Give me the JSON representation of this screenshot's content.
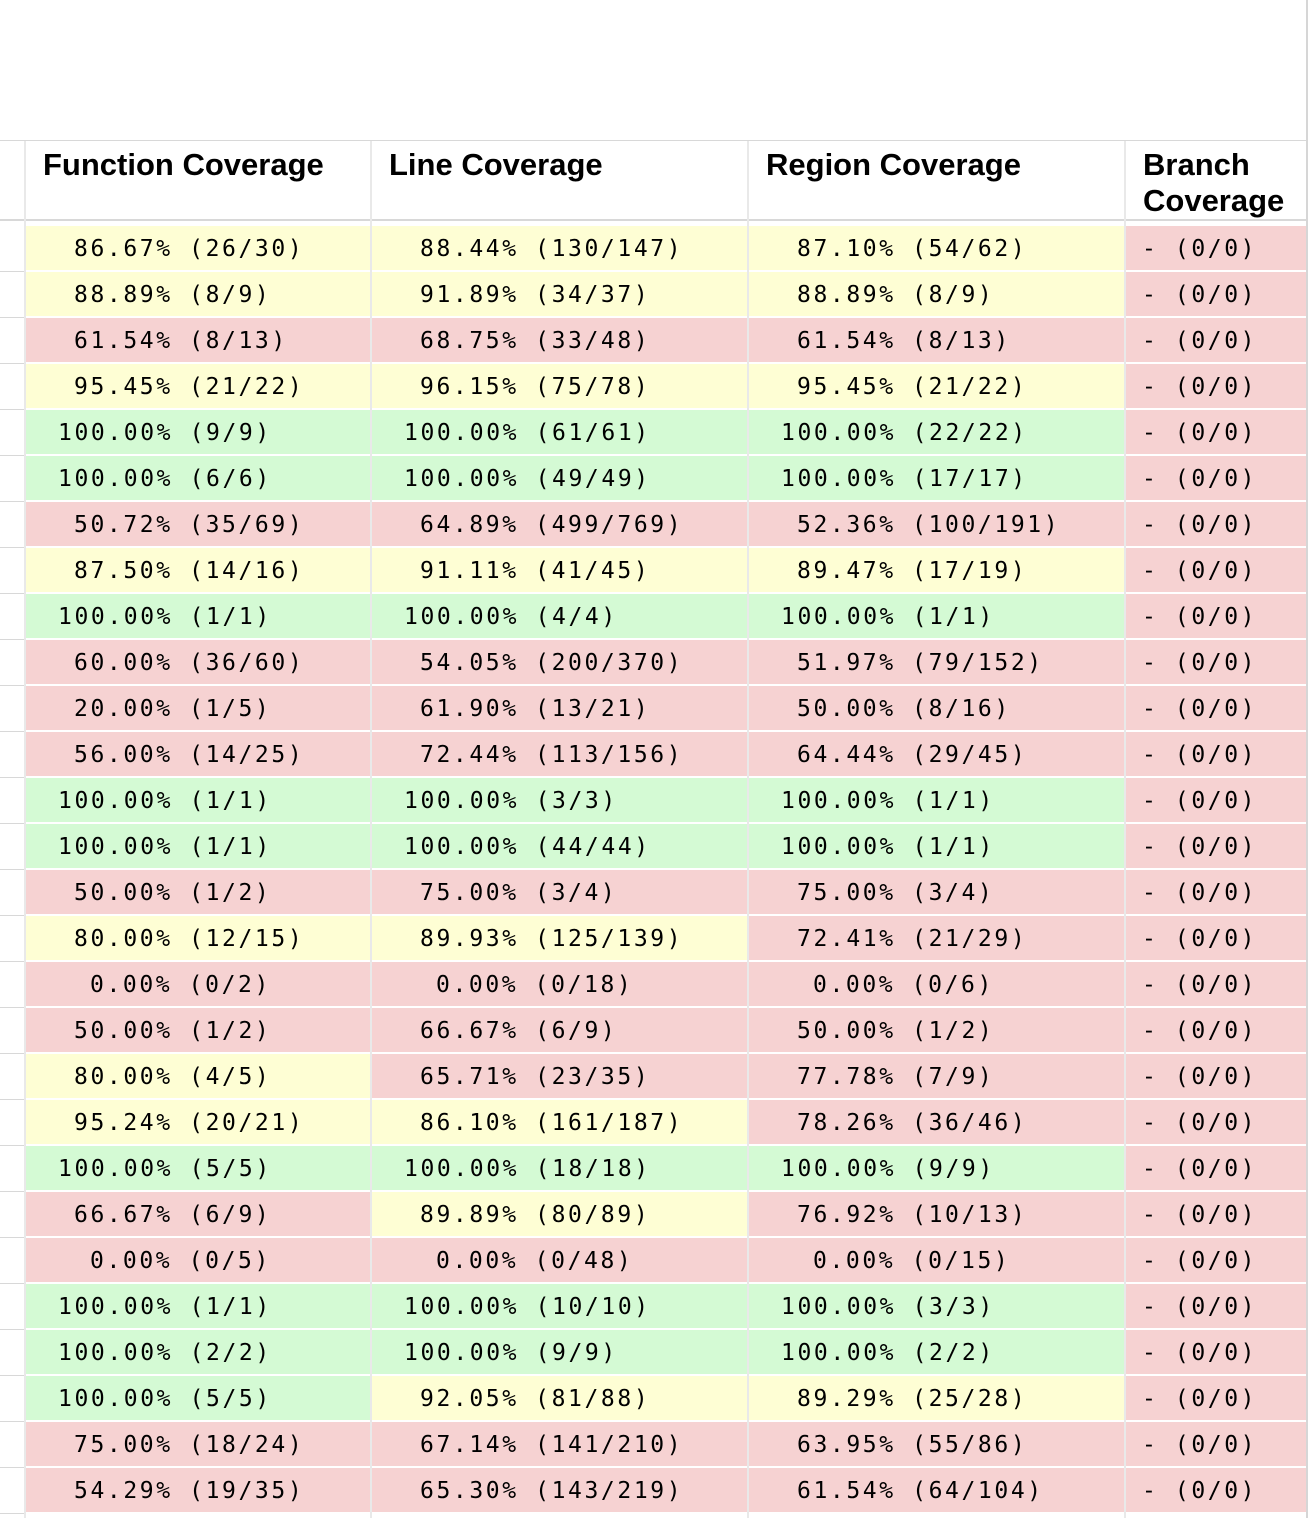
{
  "colors": {
    "good": "#d4fad4",
    "warn": "#fefed4",
    "bad": "#f6d2d2"
  },
  "headers": {
    "function": "Function Coverage",
    "line": "Line Coverage",
    "region": "Region Coverage",
    "branch": "Branch Coverage"
  },
  "rows": [
    {
      "f": "86.67% (26/30)",
      "fs": "warn",
      "l": "88.44% (130/147)",
      "ls": "warn",
      "r": "87.10% (54/62)",
      "rs": "warn",
      "b": "- (0/0)",
      "bs": "bad"
    },
    {
      "f": "88.89% (8/9)",
      "fs": "warn",
      "l": "91.89% (34/37)",
      "ls": "warn",
      "r": "88.89% (8/9)",
      "rs": "warn",
      "b": "- (0/0)",
      "bs": "bad"
    },
    {
      "f": "61.54% (8/13)",
      "fs": "bad",
      "l": "68.75% (33/48)",
      "ls": "bad",
      "r": "61.54% (8/13)",
      "rs": "bad",
      "b": "- (0/0)",
      "bs": "bad"
    },
    {
      "f": "95.45% (21/22)",
      "fs": "warn",
      "l": "96.15% (75/78)",
      "ls": "warn",
      "r": "95.45% (21/22)",
      "rs": "warn",
      "b": "- (0/0)",
      "bs": "bad"
    },
    {
      "f": "100.00% (9/9)",
      "fs": "good",
      "l": "100.00% (61/61)",
      "ls": "good",
      "r": "100.00% (22/22)",
      "rs": "good",
      "b": "- (0/0)",
      "bs": "bad"
    },
    {
      "f": "100.00% (6/6)",
      "fs": "good",
      "l": "100.00% (49/49)",
      "ls": "good",
      "r": "100.00% (17/17)",
      "rs": "good",
      "b": "- (0/0)",
      "bs": "bad"
    },
    {
      "f": "50.72% (35/69)",
      "fs": "bad",
      "l": "64.89% (499/769)",
      "ls": "bad",
      "r": "52.36% (100/191)",
      "rs": "bad",
      "b": "- (0/0)",
      "bs": "bad"
    },
    {
      "f": "87.50% (14/16)",
      "fs": "warn",
      "l": "91.11% (41/45)",
      "ls": "warn",
      "r": "89.47% (17/19)",
      "rs": "warn",
      "b": "- (0/0)",
      "bs": "bad"
    },
    {
      "f": "100.00% (1/1)",
      "fs": "good",
      "l": "100.00% (4/4)",
      "ls": "good",
      "r": "100.00% (1/1)",
      "rs": "good",
      "b": "- (0/0)",
      "bs": "bad"
    },
    {
      "f": "60.00% (36/60)",
      "fs": "bad",
      "l": "54.05% (200/370)",
      "ls": "bad",
      "r": "51.97% (79/152)",
      "rs": "bad",
      "b": "- (0/0)",
      "bs": "bad"
    },
    {
      "f": "20.00% (1/5)",
      "fs": "bad",
      "l": "61.90% (13/21)",
      "ls": "bad",
      "r": "50.00% (8/16)",
      "rs": "bad",
      "b": "- (0/0)",
      "bs": "bad"
    },
    {
      "f": "56.00% (14/25)",
      "fs": "bad",
      "l": "72.44% (113/156)",
      "ls": "bad",
      "r": "64.44% (29/45)",
      "rs": "bad",
      "b": "- (0/0)",
      "bs": "bad"
    },
    {
      "f": "100.00% (1/1)",
      "fs": "good",
      "l": "100.00% (3/3)",
      "ls": "good",
      "r": "100.00% (1/1)",
      "rs": "good",
      "b": "- (0/0)",
      "bs": "bad"
    },
    {
      "f": "100.00% (1/1)",
      "fs": "good",
      "l": "100.00% (44/44)",
      "ls": "good",
      "r": "100.00% (1/1)",
      "rs": "good",
      "b": "- (0/0)",
      "bs": "bad"
    },
    {
      "f": "50.00% (1/2)",
      "fs": "bad",
      "l": "75.00% (3/4)",
      "ls": "bad",
      "r": "75.00% (3/4)",
      "rs": "bad",
      "b": "- (0/0)",
      "bs": "bad"
    },
    {
      "f": "80.00% (12/15)",
      "fs": "warn",
      "l": "89.93% (125/139)",
      "ls": "warn",
      "r": "72.41% (21/29)",
      "rs": "bad",
      "b": "- (0/0)",
      "bs": "bad"
    },
    {
      "f": "0.00% (0/2)",
      "fs": "bad",
      "l": "0.00% (0/18)",
      "ls": "bad",
      "r": "0.00% (0/6)",
      "rs": "bad",
      "b": "- (0/0)",
      "bs": "bad"
    },
    {
      "f": "50.00% (1/2)",
      "fs": "bad",
      "l": "66.67% (6/9)",
      "ls": "bad",
      "r": "50.00% (1/2)",
      "rs": "bad",
      "b": "- (0/0)",
      "bs": "bad"
    },
    {
      "f": "80.00% (4/5)",
      "fs": "warn",
      "l": "65.71% (23/35)",
      "ls": "bad",
      "r": "77.78% (7/9)",
      "rs": "bad",
      "b": "- (0/0)",
      "bs": "bad"
    },
    {
      "f": "95.24% (20/21)",
      "fs": "warn",
      "l": "86.10% (161/187)",
      "ls": "warn",
      "r": "78.26% (36/46)",
      "rs": "bad",
      "b": "- (0/0)",
      "bs": "bad"
    },
    {
      "f": "100.00% (5/5)",
      "fs": "good",
      "l": "100.00% (18/18)",
      "ls": "good",
      "r": "100.00% (9/9)",
      "rs": "good",
      "b": "- (0/0)",
      "bs": "bad"
    },
    {
      "f": "66.67% (6/9)",
      "fs": "bad",
      "l": "89.89% (80/89)",
      "ls": "warn",
      "r": "76.92% (10/13)",
      "rs": "bad",
      "b": "- (0/0)",
      "bs": "bad"
    },
    {
      "f": "0.00% (0/5)",
      "fs": "bad",
      "l": "0.00% (0/48)",
      "ls": "bad",
      "r": "0.00% (0/15)",
      "rs": "bad",
      "b": "- (0/0)",
      "bs": "bad"
    },
    {
      "f": "100.00% (1/1)",
      "fs": "good",
      "l": "100.00% (10/10)",
      "ls": "good",
      "r": "100.00% (3/3)",
      "rs": "good",
      "b": "- (0/0)",
      "bs": "bad"
    },
    {
      "f": "100.00% (2/2)",
      "fs": "good",
      "l": "100.00% (9/9)",
      "ls": "good",
      "r": "100.00% (2/2)",
      "rs": "good",
      "b": "- (0/0)",
      "bs": "bad"
    },
    {
      "f": "100.00% (5/5)",
      "fs": "good",
      "l": "92.05% (81/88)",
      "ls": "warn",
      "r": "89.29% (25/28)",
      "rs": "warn",
      "b": "- (0/0)",
      "bs": "bad"
    },
    {
      "f": "75.00% (18/24)",
      "fs": "bad",
      "l": "67.14% (141/210)",
      "ls": "bad",
      "r": "63.95% (55/86)",
      "rs": "bad",
      "b": "- (0/0)",
      "bs": "bad"
    },
    {
      "f": "54.29% (19/35)",
      "fs": "bad",
      "l": "65.30% (143/219)",
      "ls": "bad",
      "r": "61.54% (64/104)",
      "rs": "bad",
      "b": "- (0/0)",
      "bs": "bad"
    }
  ]
}
